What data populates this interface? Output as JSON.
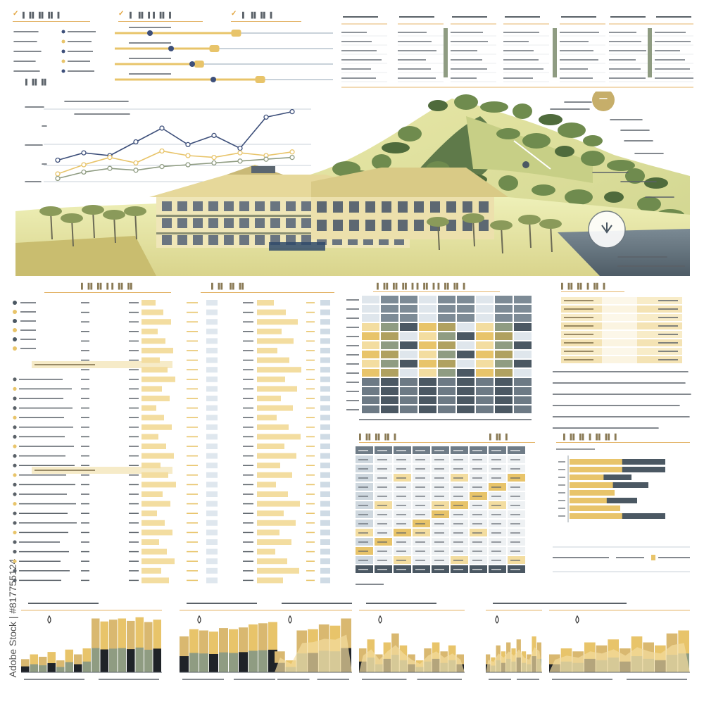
{
  "watermark": {
    "vertical_text": "Adobe Stock | #817755124"
  },
  "colors": {
    "gold": "#e8c46a",
    "pale_gold": "#f3dda0",
    "slate": "#4b5863",
    "sage": "#8f9c82",
    "olive": "#b0a160",
    "accent_line": "#e4b56a"
  },
  "icons": [
    "check-icon",
    "pin-icon",
    "down-arrow-icon",
    "tree-icon",
    "house-icon"
  ],
  "hero": {
    "scene": "hillside-estate",
    "line_chart": {
      "series": [
        {
          "color": "#3d4f7a",
          "values": [
            0.25,
            0.33,
            0.3,
            0.45,
            0.6,
            0.42,
            0.52,
            0.38,
            0.72,
            0.78
          ]
        },
        {
          "color": "#e8c46a",
          "values": [
            0.1,
            0.2,
            0.28,
            0.22,
            0.35,
            0.3,
            0.28,
            0.33,
            0.3,
            0.34
          ]
        },
        {
          "color": "#8f9c82",
          "values": [
            0.05,
            0.12,
            0.16,
            0.14,
            0.18,
            0.2,
            0.22,
            0.24,
            0.26,
            0.28
          ]
        }
      ]
    }
  },
  "bar_panels": [
    {
      "bars": [
        0.22,
        0.3,
        0.26,
        0.34,
        0.2,
        0.38,
        0.3,
        0.4,
        0.9,
        0.85,
        0.88,
        0.9,
        0.86,
        0.92,
        0.84,
        0.88
      ]
    },
    {
      "bars": [
        0.6,
        0.72,
        0.7,
        0.68,
        0.74,
        0.72,
        0.75,
        0.8,
        0.82,
        0.84
      ]
    },
    {
      "bars": [
        0.35,
        0.2,
        0.7,
        0.72,
        0.8,
        0.78,
        0.9
      ]
    },
    {
      "bars": [
        0.4,
        0.55,
        0.3,
        0.5,
        0.65,
        0.45,
        0.3,
        0.2,
        0.4,
        0.5,
        0.35,
        0.45,
        0.3
      ]
    },
    {
      "bars": [
        0.3,
        0.25,
        0.45,
        0.35,
        0.5,
        0.4,
        0.55,
        0.35,
        0.3,
        0.6,
        0.5
      ]
    },
    {
      "bars": [
        0.3,
        0.4,
        0.35,
        0.5,
        0.45,
        0.55,
        0.4,
        0.6,
        0.5,
        0.45,
        0.65,
        0.7
      ]
    }
  ],
  "hbar_chart": {
    "rows": [
      0.85,
      0.85,
      0.55,
      0.7,
      0.4,
      0.6,
      0.45,
      0.85
    ]
  },
  "progress_tracks": [
    0.55,
    0.45,
    0.38,
    0.66
  ]
}
